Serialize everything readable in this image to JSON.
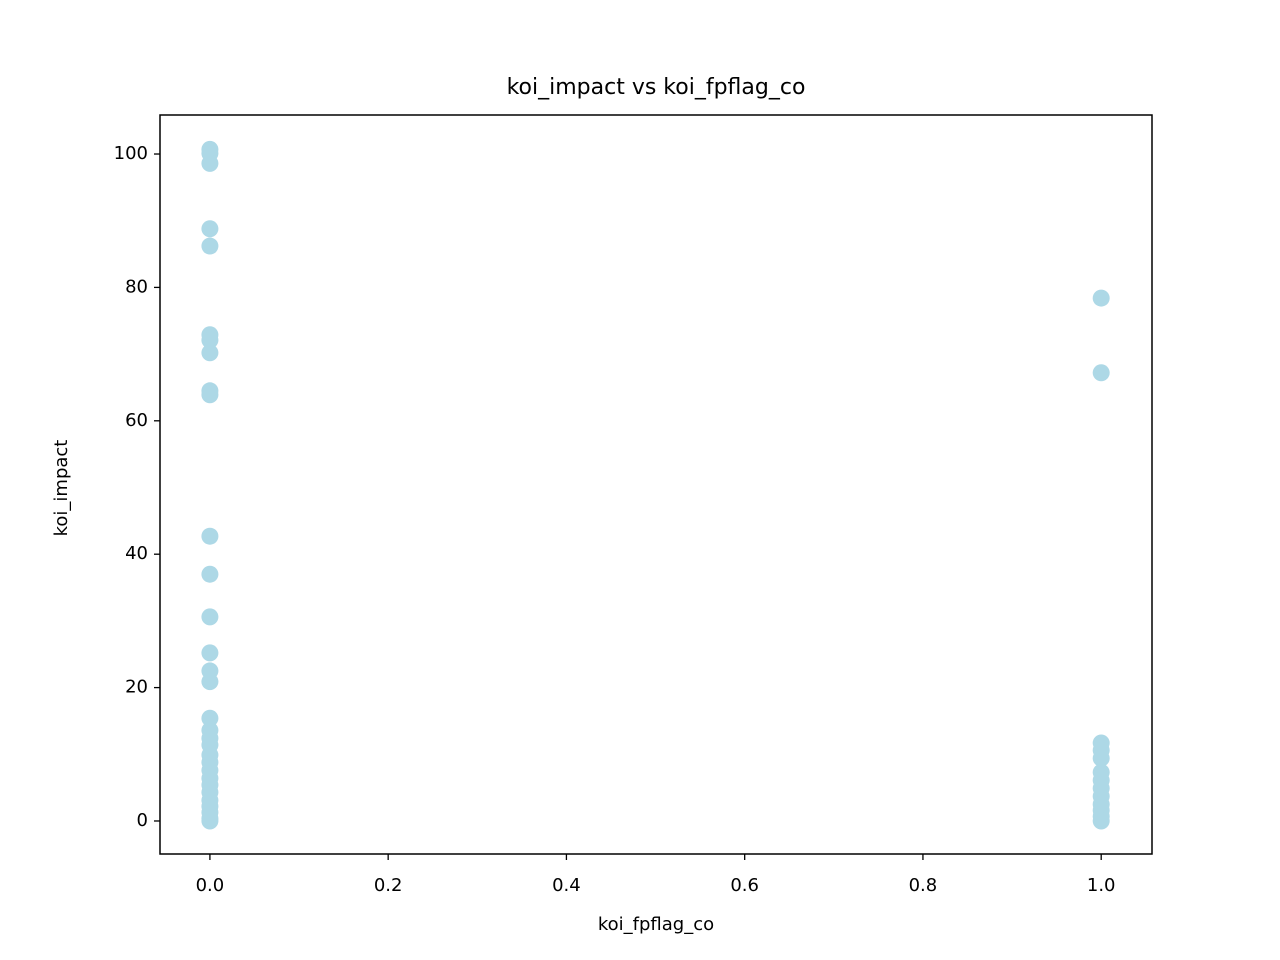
{
  "chart_data": {
    "type": "scatter",
    "title": "koi_impact vs koi_fpflag_co",
    "x_label": "koi_fpflag_co",
    "y_label": "koi_impact",
    "x": [
      0,
      0,
      0,
      0,
      0,
      0,
      0,
      0,
      0,
      0,
      0,
      0,
      0,
      0,
      0,
      0,
      0,
      0,
      0,
      0,
      0,
      0,
      0,
      0,
      0,
      0,
      0,
      0,
      0,
      0,
      0,
      1,
      1,
      1,
      1,
      1,
      1,
      1,
      1,
      1,
      1,
      1,
      1,
      1
    ],
    "values": [
      100.7,
      100.1,
      98.6,
      88.8,
      86.2,
      72.9,
      72.1,
      70.2,
      64.5,
      63.9,
      42.7,
      37.0,
      30.6,
      25.2,
      22.5,
      20.9,
      15.4,
      13.6,
      12.4,
      11.4,
      9.9,
      8.8,
      7.6,
      6.4,
      5.4,
      4.3,
      3.1,
      2.2,
      1.3,
      0.4,
      0.0,
      78.4,
      67.2,
      11.7,
      10.6,
      9.4,
      7.3,
      6.1,
      4.9,
      3.7,
      2.5,
      1.6,
      0.7,
      0.0
    ],
    "color": "#add8e6",
    "xlim": [
      -0.056,
      1.057
    ],
    "ylim": [
      -4.95,
      105.85
    ],
    "xticks": [
      {
        "value": 0,
        "label": "0.0"
      },
      0.2,
      0.4,
      0.6,
      0.8,
      {
        "value": 1,
        "label": "1.0"
      }
    ],
    "yticks": [
      0,
      20,
      40,
      60,
      80,
      100
    ]
  }
}
